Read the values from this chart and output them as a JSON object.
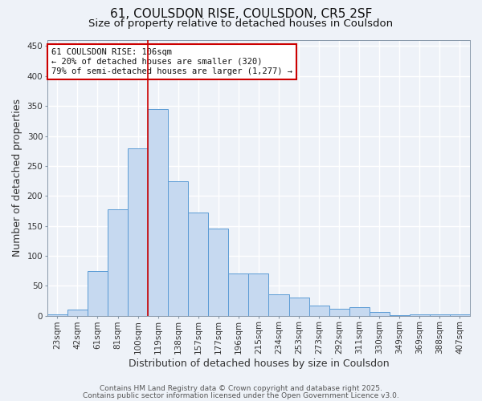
{
  "title": "61, COULSDON RISE, COULSDON, CR5 2SF",
  "subtitle": "Size of property relative to detached houses in Coulsdon",
  "xlabel": "Distribution of detached houses by size in Coulsdon",
  "ylabel": "Number of detached properties",
  "footnote1": "Contains HM Land Registry data © Crown copyright and database right 2025.",
  "footnote2": "Contains public sector information licensed under the Open Government Licence v3.0.",
  "bar_labels": [
    "23sqm",
    "42sqm",
    "61sqm",
    "81sqm",
    "100sqm",
    "119sqm",
    "138sqm",
    "157sqm",
    "177sqm",
    "196sqm",
    "215sqm",
    "234sqm",
    "253sqm",
    "273sqm",
    "292sqm",
    "311sqm",
    "330sqm",
    "349sqm",
    "369sqm",
    "388sqm",
    "407sqm"
  ],
  "bar_values": [
    2,
    11,
    75,
    178,
    280,
    345,
    225,
    172,
    145,
    70,
    70,
    36,
    30,
    17,
    12,
    14,
    6,
    1,
    2,
    2,
    3
  ],
  "bar_color": "#c6d9f0",
  "bar_edgecolor": "#5b9bd5",
  "ylim": [
    0,
    460
  ],
  "yticks": [
    0,
    50,
    100,
    150,
    200,
    250,
    300,
    350,
    400,
    450
  ],
  "vline_index": 4,
  "vline_color": "#cc0000",
  "annotation_text": "61 COULSDON RISE: 106sqm\n← 20% of detached houses are smaller (320)\n79% of semi-detached houses are larger (1,277) →",
  "annotation_box_facecolor": "white",
  "annotation_box_edgecolor": "#cc0000",
  "background_color": "#eef2f8",
  "grid_color": "white",
  "title_fontsize": 11,
  "subtitle_fontsize": 9.5,
  "axis_label_fontsize": 9,
  "tick_fontsize": 7.5,
  "annotation_fontsize": 7.5,
  "footnote_fontsize": 6.5
}
